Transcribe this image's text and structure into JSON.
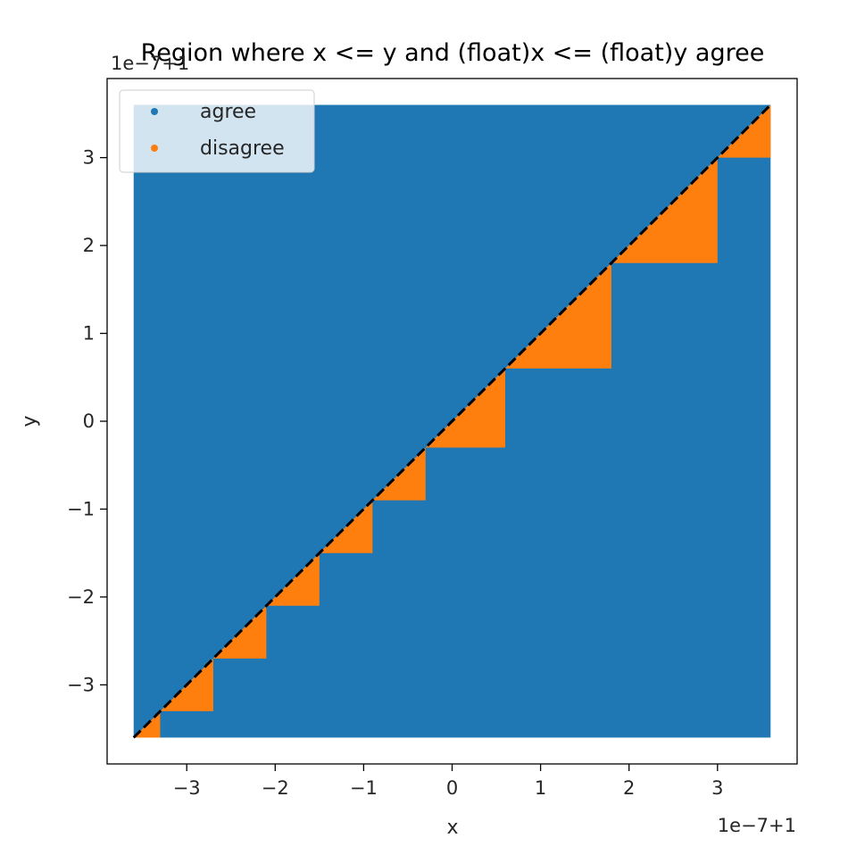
{
  "chart_data": {
    "type": "scatter",
    "title": "Region where x <= y and (float)x <= (float)y agree",
    "xlabel": "x",
    "ylabel": "y",
    "x_offset_text": "1e−7+1",
    "y_offset_text": "1e−7+1",
    "xlim": [
      -3.9,
      3.9
    ],
    "ylim": [
      -3.9,
      3.9
    ],
    "x_range": [
      -3.6,
      3.6
    ],
    "y_range": [
      -3.6,
      3.6
    ],
    "xticks": [
      -3,
      -2,
      -1,
      0,
      1,
      2,
      3
    ],
    "yticks": [
      -3,
      -2,
      -1,
      0,
      1,
      2,
      3
    ],
    "xtick_labels": [
      "−3",
      "−2",
      "−1",
      "0",
      "1",
      "2",
      "3"
    ],
    "ytick_labels": [
      "−3",
      "−2",
      "−1",
      "0",
      "1",
      "2",
      "3"
    ],
    "float_breakpoints": [
      -3.6,
      -3.3,
      -2.7,
      -2.1,
      -1.5,
      -0.9,
      -0.3,
      0.6,
      1.8,
      3.0,
      3.6
    ],
    "diagonal": {
      "x": [
        -3.6,
        3.6
      ],
      "y": [
        -3.6,
        3.6
      ],
      "style": "dashed",
      "color": "#000000"
    },
    "series": [
      {
        "name": "agree",
        "color": "#1f77b4"
      },
      {
        "name": "disagree",
        "color": "#ff7f0e"
      }
    ],
    "legend": {
      "position": "top-left"
    },
    "grid": false
  }
}
